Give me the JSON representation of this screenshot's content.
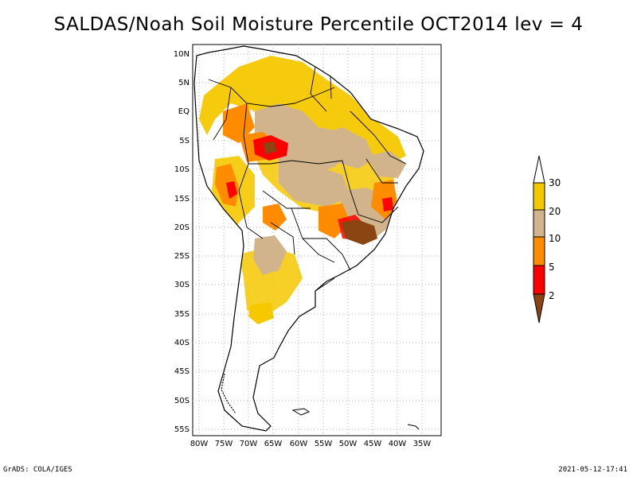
{
  "title": "SALDAS/Noah Soil Moisture Percentile OCT2014 lev = 4",
  "footer": {
    "credit": "GrADS: COLA/IGES",
    "timestamp": "2021-05-12-17:41"
  },
  "axes": {
    "lat_labels": [
      "10N",
      "5N",
      "EQ",
      "5S",
      "10S",
      "15S",
      "20S",
      "25S",
      "30S",
      "35S",
      "40S",
      "45S",
      "50S",
      "55S"
    ],
    "lon_labels": [
      "80W",
      "75W",
      "70W",
      "65W",
      "60W",
      "55W",
      "50W",
      "45W",
      "40W",
      "35W"
    ],
    "lat_range": [
      -56,
      11
    ],
    "lon_range": [
      -81,
      -32
    ]
  },
  "legend": {
    "labels": [
      "30",
      "20",
      "10",
      "5",
      "2"
    ],
    "colors": {
      "above_30": "#ffffff",
      "20_30": "#f5c800",
      "10_20": "#d2b48c",
      "5_10": "#ff8c00",
      "2_5": "#ff0000",
      "below_2": "#8b4513"
    }
  },
  "colors": {
    "dry_low": "#8b4513",
    "dry_red": "#ff0000",
    "dry_orange": "#ff8c00",
    "tan": "#d2b48c",
    "yellow": "#f5c800",
    "grid": "#b0b0b0"
  }
}
